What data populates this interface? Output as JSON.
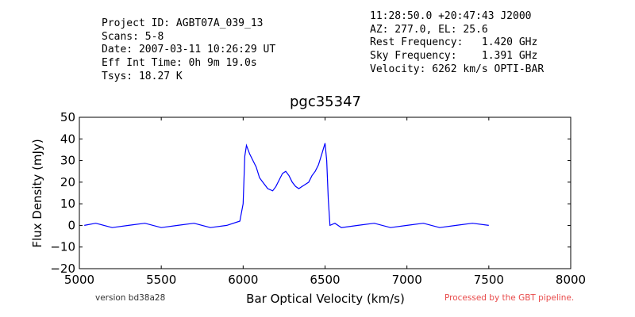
{
  "header": {
    "left": [
      "Project ID: AGBT07A_039_13",
      "Scans: 5-8",
      "Date: 2007-03-11 10:26:29 UT",
      "Eff Int Time: 0h 9m 19.0s",
      "Tsys: 18.27 K"
    ],
    "right": [
      "11:28:50.0 +20:47:43 J2000",
      "AZ: 277.0, EL: 25.6",
      "Rest Frequency:   1.420 GHz",
      "Sky Frequency:    1.391 GHz",
      "Velocity: 6262 km/s OPTI-BAR"
    ]
  },
  "footer": {
    "version": "version bd38a28",
    "processed": "Processed by the GBT pipeline."
  },
  "colors": {
    "line": "#0000ff",
    "processed": "#e84a4a"
  },
  "chart_data": {
    "type": "line",
    "title": "pgc35347",
    "xlabel": "Bar Optical Velocity (km/s)",
    "ylabel": "Flux Density (mJy)",
    "xlim": [
      5000,
      8000
    ],
    "ylim": [
      -20,
      50
    ],
    "xticks": [
      5000,
      5500,
      6000,
      6500,
      7000,
      7500,
      8000
    ],
    "yticks": [
      -20,
      -10,
      0,
      10,
      20,
      30,
      40,
      50
    ],
    "grid": false,
    "series": [
      {
        "x": [
          5030,
          5100,
          5200,
          5300,
          5400,
          5500,
          5600,
          5700,
          5800,
          5900,
          5980,
          6000,
          6010,
          6020,
          6040,
          6060,
          6080,
          6100,
          6120,
          6150,
          6180,
          6200,
          6220,
          6240,
          6260,
          6280,
          6300,
          6320,
          6340,
          6360,
          6380,
          6400,
          6420,
          6440,
          6460,
          6480,
          6500,
          6510,
          6520,
          6530,
          6560,
          6600,
          6700,
          6800,
          6900,
          7000,
          7100,
          7200,
          7300,
          7400,
          7500
        ],
        "y": [
          0,
          1,
          -1,
          0,
          1,
          -1,
          0,
          1,
          -1,
          0,
          2,
          10,
          32,
          37,
          33,
          30,
          27,
          22,
          20,
          17,
          16,
          18,
          21,
          24,
          25,
          23,
          20,
          18,
          17,
          18,
          19,
          20,
          23,
          25,
          28,
          33,
          38,
          30,
          12,
          0,
          1,
          -1,
          0,
          1,
          -1,
          0,
          1,
          -1,
          0,
          1,
          0
        ]
      }
    ]
  }
}
